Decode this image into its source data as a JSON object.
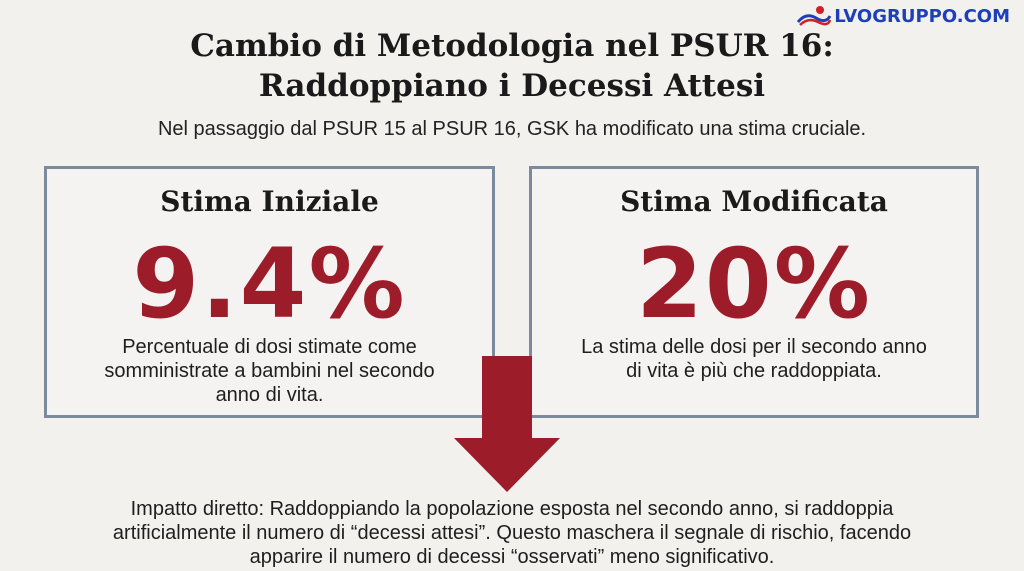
{
  "logo": {
    "text": "LVOGRUPPO.COM",
    "icon": "wave-logo-icon"
  },
  "header": {
    "title_line1": "Cambio di Metodologia nel PSUR 16:",
    "title_line2": "Raddoppiano i Decessi Attesi",
    "subtitle": "Nel passaggio dal PSUR 15 al PSUR 16, GSK ha modificato una stima cruciale."
  },
  "cards": [
    {
      "title": "Stima Iniziale",
      "value": "9.4%",
      "desc_line1": "Percentuale di dosi stimate come",
      "desc_line2": "somministrate a bambini nel secondo",
      "desc_line3": "anno di vita."
    },
    {
      "title": "Stima Modificata",
      "value": "20%",
      "desc_line1": "La stima delle dosi per il secondo anno",
      "desc_line2": "di vita è più che raddoppiata."
    }
  ],
  "impact": {
    "line1": "Impatto diretto: Raddoppiando la popolazione esposta nel secondo anno, si raddoppia",
    "line2": "artificialmente il numero di “decessi attesi”. Questo maschera il segnale di rischio, facendo",
    "line3": "apparire il numero di decessi “osservati” meno significativo."
  },
  "colors": {
    "accent": "#9c1c2a",
    "border": "#7c8a9e",
    "background": "#f3f1ee",
    "logo": "#1d3fb8"
  }
}
